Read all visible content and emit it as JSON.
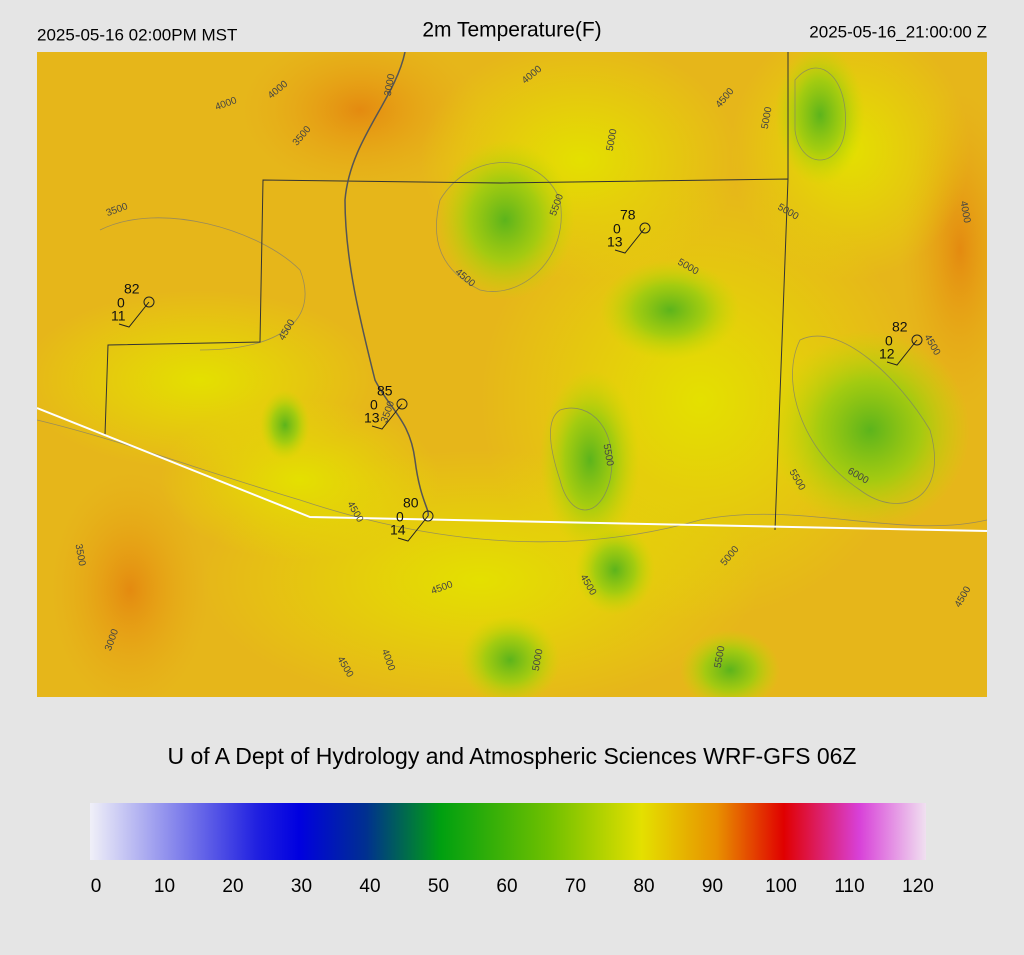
{
  "header": {
    "left": "2025-05-16 02:00PM MST",
    "title": "2m Temperature(F)",
    "right": "2025-05-16_21:00:00 Z"
  },
  "map": {
    "stations": [
      {
        "temperature": 82,
        "middle": 0,
        "lower": 11
      },
      {
        "temperature": 78,
        "middle": 0,
        "lower": 13
      },
      {
        "temperature": 82,
        "middle": 0,
        "lower": 12
      },
      {
        "temperature": 85,
        "middle": 0,
        "lower": 13
      },
      {
        "temperature": 80,
        "middle": 0,
        "lower": 14
      }
    ],
    "contour_labels": [
      4000,
      4000,
      3000,
      4000,
      3500,
      3500,
      4500,
      5000,
      5000,
      5500,
      4500,
      5000,
      5000,
      4000,
      4500,
      4500,
      3500,
      5500,
      5500,
      6000,
      4500,
      3500,
      5000,
      4500,
      4500,
      4500,
      3000,
      4000,
      4500,
      5000,
      5500
    ]
  },
  "footer": {
    "credit": "U of A Dept of Hydrology and Atmospheric Sciences WRF-GFS 06Z"
  },
  "colorbar": {
    "lim": [
      0,
      120
    ],
    "ticks": [
      0,
      10,
      20,
      30,
      40,
      50,
      60,
      70,
      80,
      90,
      100,
      110,
      120
    ]
  }
}
